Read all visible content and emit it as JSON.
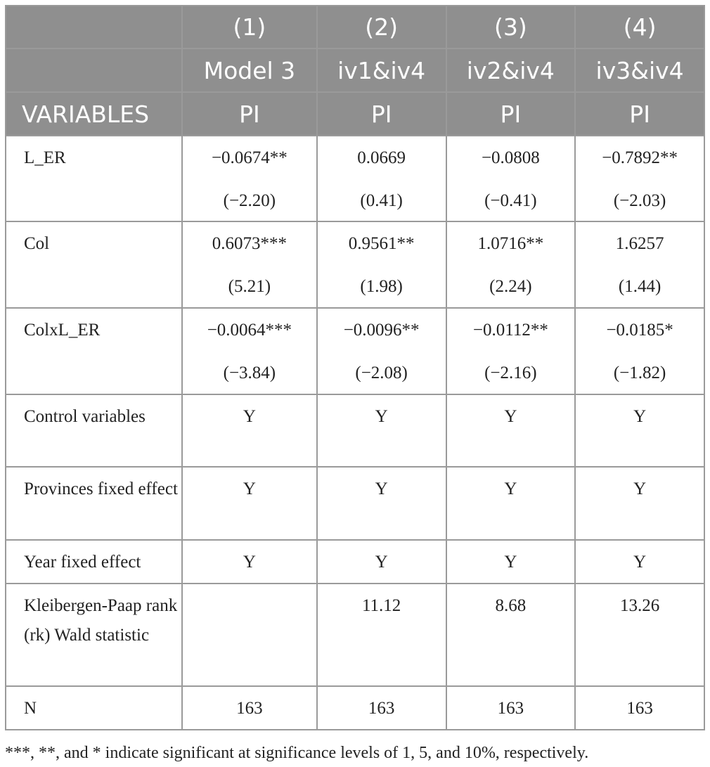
{
  "header": {
    "row1": [
      "",
      "(1)",
      "(2)",
      "(3)",
      "(4)"
    ],
    "row2": [
      "",
      "Model 3",
      "iv1&iv4",
      "iv2&iv4",
      "iv3&iv4"
    ],
    "row3": [
      "VARIABLES",
      "PI",
      "PI",
      "PI",
      "PI"
    ]
  },
  "rows": [
    {
      "label": "L_ER",
      "coef": [
        "−0.0674**",
        "0.0669",
        "−0.0808",
        "−0.7892**"
      ],
      "t": [
        "(−2.20)",
        "(0.41)",
        "(−0.41)",
        "(−2.03)"
      ]
    },
    {
      "label": "Col",
      "coef": [
        "0.6073***",
        "0.9561**",
        "1.0716**",
        "1.6257"
      ],
      "t": [
        "(5.21)",
        "(1.98)",
        "(2.24)",
        "(1.44)"
      ]
    },
    {
      "label": "ColxL_ER",
      "coef": [
        "−0.0064***",
        "−0.0096**",
        "−0.0112**",
        "−0.0185*"
      ],
      "t": [
        "(−3.84)",
        "(−2.08)",
        "(−2.16)",
        "(−1.82)"
      ]
    },
    {
      "label": "Control variables",
      "vals": [
        "Y",
        "Y",
        "Y",
        "Y"
      ]
    },
    {
      "label": "Provinces fixed effect",
      "vals": [
        "Y",
        "Y",
        "Y",
        "Y"
      ]
    },
    {
      "label": "Year fixed effect",
      "vals": [
        "Y",
        "Y",
        "Y",
        "Y"
      ]
    },
    {
      "label": "Kleibergen-Paap rank (rk) Wald statistic",
      "vals": [
        "",
        "11.12",
        "8.68",
        "13.26"
      ]
    },
    {
      "label": "N",
      "vals": [
        "163",
        "163",
        "163",
        "163"
      ]
    }
  ],
  "footnote": "***, **, and * indicate significant at significance levels of 1, 5, and 10%, respectively."
}
